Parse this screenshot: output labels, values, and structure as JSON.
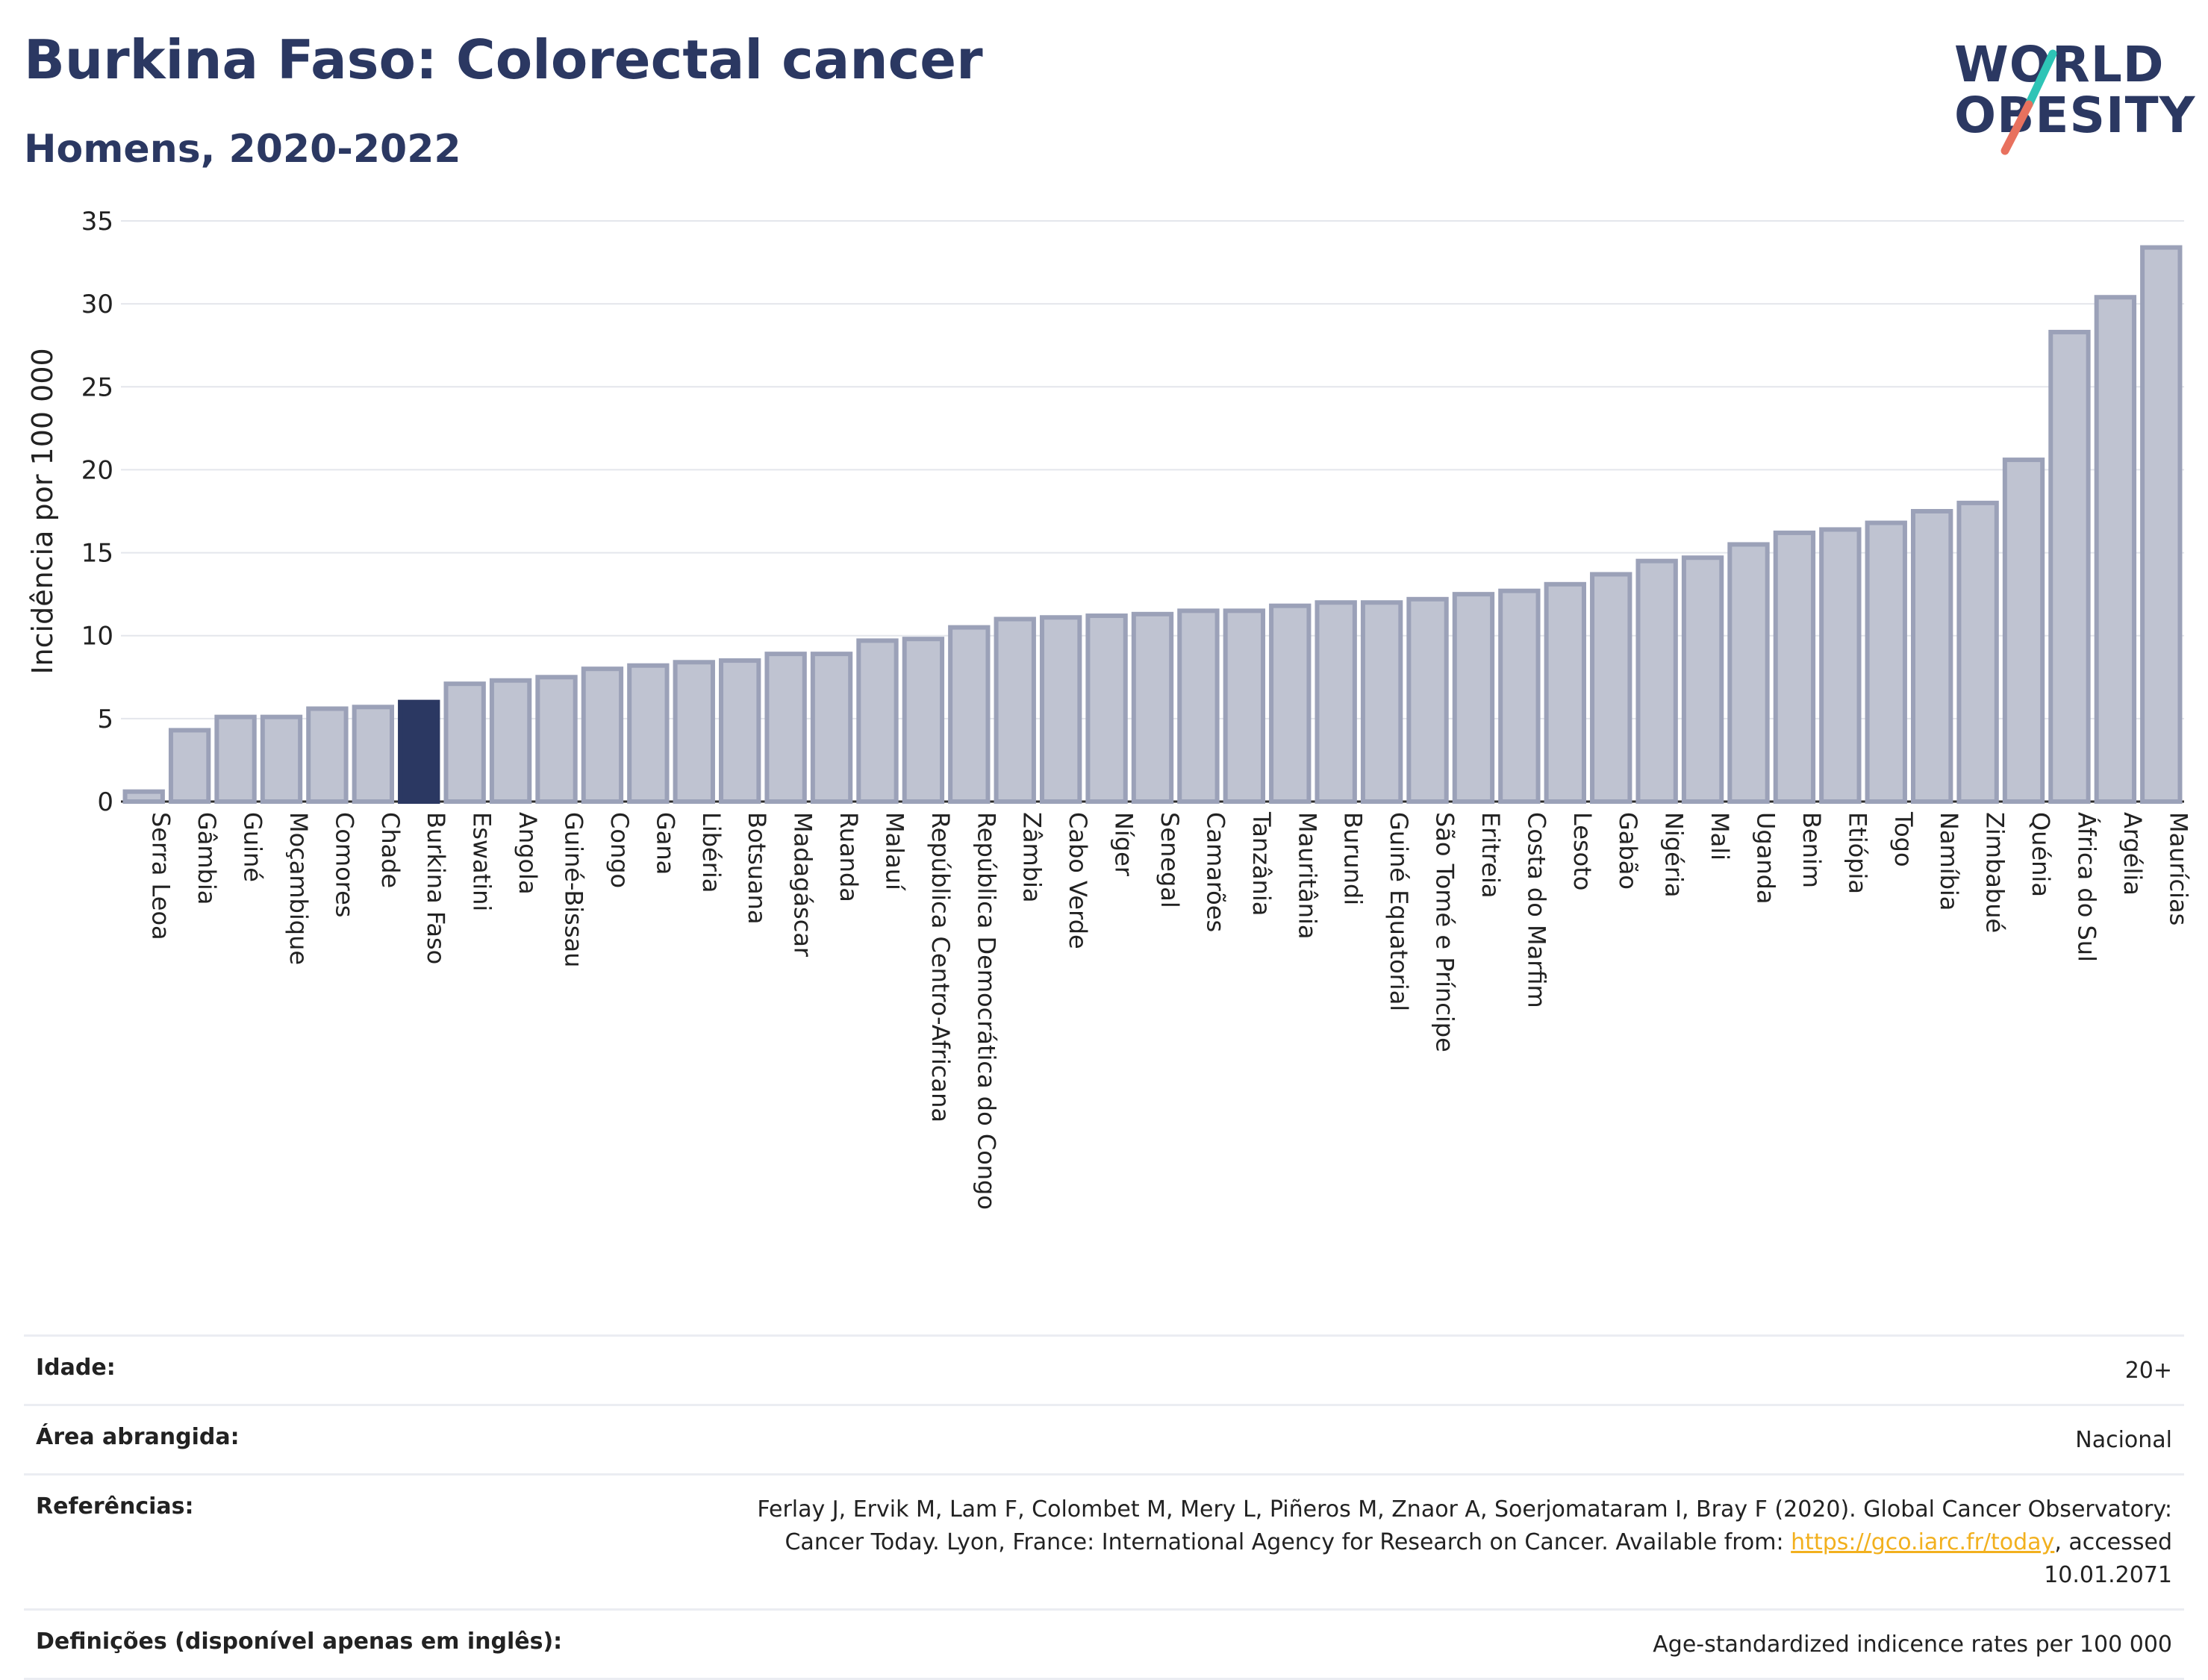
{
  "header": {
    "title": "Burkina Faso: Colorectal cancer",
    "subtitle": "Homens, 2020-2022"
  },
  "logo": {
    "line1": "WORLD",
    "line2": "OBESITY",
    "slash_colors": [
      "#2ec4b6",
      "#e8715e"
    ]
  },
  "chart_data": {
    "type": "bar",
    "ylabel": "Incidência por 100 000",
    "ylim": [
      0,
      35
    ],
    "yticks": [
      0,
      5,
      10,
      15,
      20,
      25,
      30,
      35
    ],
    "grid": true,
    "highlight": "Burkina Faso",
    "colors": {
      "bar_fill": "#bfc3d1",
      "bar_stroke": "#9ba1b8",
      "highlight_fill": "#2b3862"
    },
    "categories": [
      "Serra Leoa",
      "Gâmbia",
      "Guiné",
      "Moçambique",
      "Comores",
      "Chade",
      "Burkina Faso",
      "Eswatini",
      "Angola",
      "Guiné-Bissau",
      "Congo",
      "Gana",
      "Libéria",
      "Botsuana",
      "Madagáscar",
      "Ruanda",
      "Malauí",
      "República Centro-Africana",
      "República Democrática do Congo",
      "Zâmbia",
      "Cabo Verde",
      "Níger",
      "Senegal",
      "Camarões",
      "Tanzânia",
      "Mauritânia",
      "Burundi",
      "Guiné Equatorial",
      "São Tomé e Príncipe",
      "Eritreia",
      "Costa do Marfim",
      "Lesoto",
      "Gabão",
      "Nigéria",
      "Mali",
      "Uganda",
      "Benim",
      "Etiópia",
      "Togo",
      "Namíbia",
      "Zimbabué",
      "Quénia",
      "África do Sul",
      "Argélia",
      "Maurícias"
    ],
    "values": [
      0.6,
      4.3,
      5.1,
      5.1,
      5.6,
      5.7,
      6.0,
      7.1,
      7.3,
      7.5,
      8.0,
      8.2,
      8.4,
      8.5,
      8.9,
      8.9,
      9.7,
      9.8,
      10.5,
      11.0,
      11.1,
      11.2,
      11.3,
      11.5,
      11.5,
      11.8,
      12.0,
      12.0,
      12.2,
      12.5,
      12.7,
      13.1,
      13.7,
      14.5,
      14.7,
      15.5,
      16.2,
      16.4,
      16.8,
      17.5,
      18.0,
      20.6,
      28.3,
      30.4,
      33.4
    ]
  },
  "info": {
    "age_label": "Idade:",
    "age_value": "20+",
    "area_label": "Área abrangida:",
    "area_value": "Nacional",
    "ref_label": "Referências:",
    "ref_text_before": "Ferlay J, Ervik M, Lam F, Colombet M, Mery L, Piñeros M, Znaor A, Soerjomataram I, Bray F (2020). Global Cancer Observatory: Cancer Today. Lyon, France: International Agency for Research on Cancer. Available from: ",
    "ref_link": "https://gco.iarc.fr/today",
    "ref_text_after": ", accessed 10.01.2071",
    "def_label": "Definições (disponível apenas em inglês):",
    "def_value": "Age-standardized indicence rates per 100 000"
  }
}
